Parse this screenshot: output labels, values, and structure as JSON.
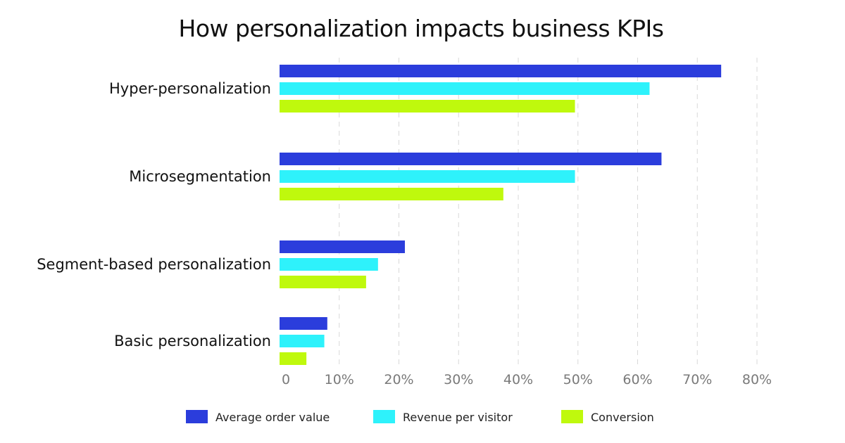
{
  "chart_data": {
    "type": "bar",
    "orientation": "horizontal",
    "title": "How personalization impacts business KPIs",
    "categories": [
      "Hyper-personalization",
      "Microsegmentation",
      "Segment-based personalization",
      "Basic personalization"
    ],
    "series": [
      {
        "name": "Average order value",
        "color": "#2b3ddc",
        "values": [
          74,
          64,
          21,
          8
        ]
      },
      {
        "name": "Revenue per visitor",
        "color": "#2ef2fb",
        "values": [
          62,
          49.5,
          16.5,
          7.5
        ]
      },
      {
        "name": "Conversion",
        "color": "#bff90d",
        "values": [
          49.5,
          37.5,
          14.5,
          4.5
        ]
      }
    ],
    "x_ticks": [
      "0",
      "10%",
      "20%",
      "30%",
      "40%",
      "50%",
      "60%",
      "70%",
      "80%"
    ],
    "xlim": [
      0,
      80
    ],
    "grid": true,
    "legend_position": "bottom"
  }
}
